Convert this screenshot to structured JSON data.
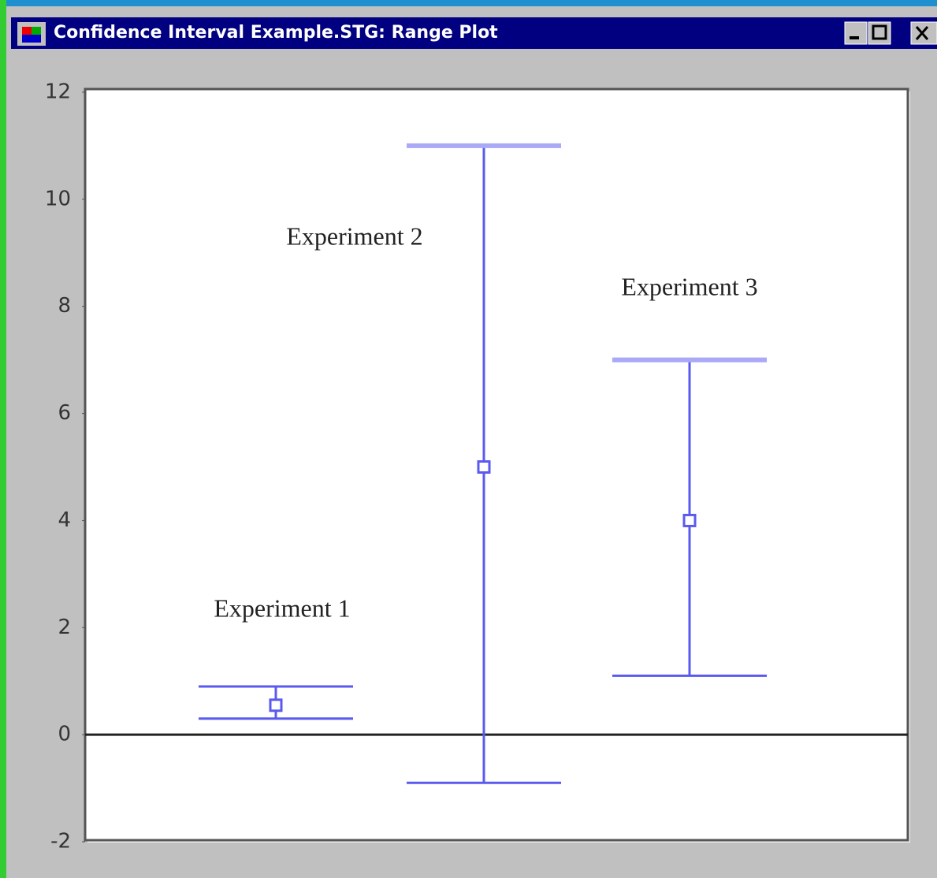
{
  "window": {
    "title": "Confidence Interval Example.STG: Range Plot"
  },
  "chart_data": {
    "type": "range",
    "color": "#5a5af0",
    "cap_color": "#a9a9f7",
    "ylim": [
      -2,
      12
    ],
    "yticks": [
      -2,
      0,
      2,
      4,
      6,
      8,
      10,
      12
    ],
    "zero_line": true,
    "series": [
      {
        "name": "Experiment 1",
        "low": 0.3,
        "mid": 0.55,
        "high": 0.9
      },
      {
        "name": "Experiment 2",
        "low": -0.9,
        "mid": 5,
        "high": 11
      },
      {
        "name": "Experiment 3",
        "low": 1.1,
        "mid": 4,
        "high": 7
      }
    ]
  }
}
